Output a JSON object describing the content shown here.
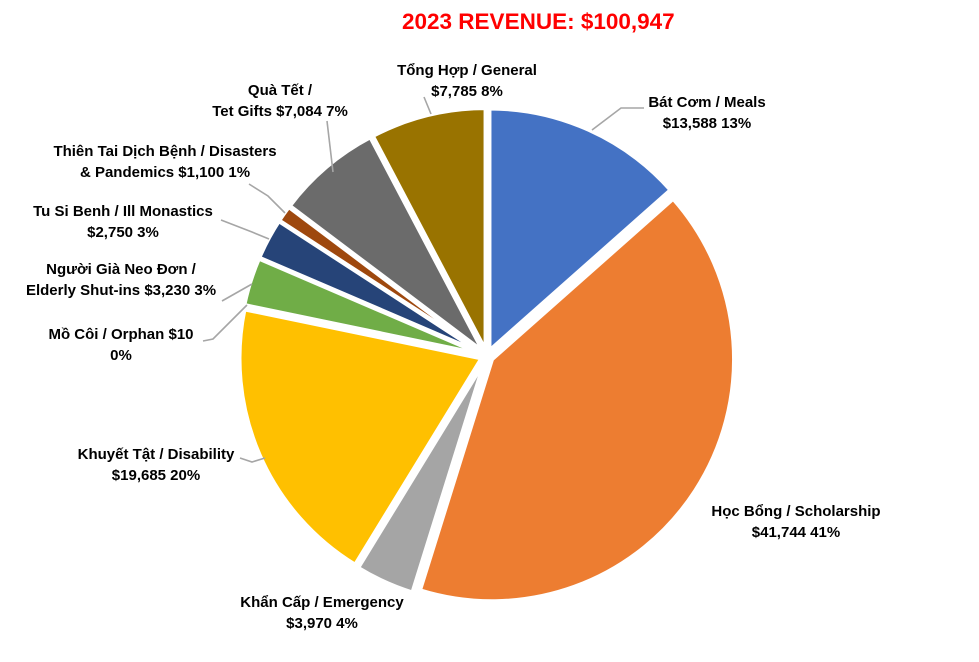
{
  "title": {
    "text": "2023 REVENUE: $100,947",
    "color": "#FF0000"
  },
  "chart_data": {
    "type": "pie",
    "title": "2023 REVENUE: $100,947",
    "total_shown_in_title": 100947,
    "start_angle_deg": 0,
    "direction": "clockwise",
    "legend_position": "none",
    "label_style": "callouts with leader lines, bold black text",
    "slice_border_color": "#FFFFFF",
    "leader_line_color": "#A6A6A6",
    "slices": [
      {
        "id": "meals",
        "label": "Bát Cơm / Meals",
        "value": 13588,
        "amount": "$13,588",
        "percent": "13%",
        "color": "#4472C4",
        "callout_lines": [
          "Bát Cơm / Meals",
          "$13,588  13%"
        ]
      },
      {
        "id": "scholarship",
        "label": "Học Bổng / Scholarship",
        "value": 41744,
        "amount": "$41,744",
        "percent": "41%",
        "color": "#ED7D31",
        "callout_lines": [
          "Học Bổng / Scholarship",
          "$41,744  41%"
        ]
      },
      {
        "id": "emergency",
        "label": "Khẩn Cấp / Emergency",
        "value": 3970,
        "amount": "$3,970",
        "percent": "4%",
        "color": "#A5A5A5",
        "callout_lines": [
          "Khẩn Cấp / Emergency",
          "$3,970  4%"
        ]
      },
      {
        "id": "disability",
        "label": "Khuyết Tật / Disability",
        "value": 19685,
        "amount": "$19,685",
        "percent": "20%",
        "color": "#FFC000",
        "callout_lines": [
          "Khuyết Tật / Disability",
          "$19,685  20%"
        ]
      },
      {
        "id": "orphan",
        "label": "Mồ Côi / Orphan",
        "value": 10,
        "amount": "$10",
        "percent": "0%",
        "color": "#5B9BD5",
        "callout_lines": [
          "Mồ Côi / Orphan  $10",
          "0%"
        ]
      },
      {
        "id": "elderly",
        "label": "Người Già Neo Đơn / Elderly Shut-ins",
        "value": 3230,
        "amount": "$3,230",
        "percent": "3%",
        "color": "#70AD47",
        "callout_lines": [
          "Người Già Neo Đơn /",
          "Elderly Shut-ins  $3,230  3%"
        ]
      },
      {
        "id": "monastics",
        "label": "Tu Si Benh / Ill Monastics",
        "value": 2750,
        "amount": "$2,750",
        "percent": "3%",
        "color": "#264478",
        "callout_lines": [
          "Tu Si Benh / Ill Monastics",
          "$2,750  3%"
        ]
      },
      {
        "id": "disasters",
        "label": "Thiên Tai Dịch Bệnh / Disasters & Pandemics",
        "value": 1100,
        "amount": "$1,100",
        "percent": "1%",
        "color": "#9E480E",
        "callout_lines": [
          "Thiên Tai Dịch Bệnh / Disasters",
          "& Pandemics  $1,100  1%"
        ]
      },
      {
        "id": "tet",
        "label": "Quà Tết / Tet Gifts",
        "value": 7084,
        "amount": "$7,084",
        "percent": "7%",
        "color": "#6B6B6B",
        "callout_lines": [
          "Quà Tết /",
          "Tet Gifts  $7,084  7%"
        ]
      },
      {
        "id": "general",
        "label": "Tổng Hợp / General",
        "value": 7785,
        "amount": "$7,785",
        "percent": "8%",
        "color": "#997300",
        "callout_lines": [
          "Tổng Hợp / General",
          "$7,785  8%"
        ]
      }
    ]
  }
}
